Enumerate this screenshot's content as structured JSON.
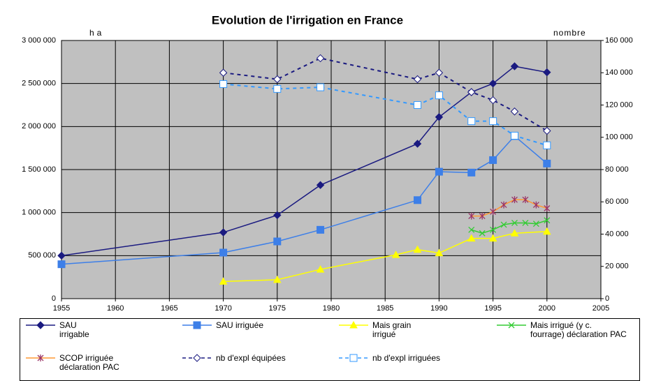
{
  "chart_data": {
    "type": "line",
    "title": "Evolution de l'irrigation en France",
    "ylabel": "ha",
    "y2label": "nombre",
    "xlim": [
      1955,
      2005
    ],
    "xticks": [
      1955,
      1960,
      1965,
      1970,
      1975,
      1980,
      1985,
      1990,
      1995,
      2000,
      2005
    ],
    "ylim": [
      0,
      3000000
    ],
    "yticks": [
      {
        "value": 0,
        "label": "0"
      },
      {
        "value": 500000,
        "label": "500 000"
      },
      {
        "value": 1000000,
        "label": "1 000 000"
      },
      {
        "value": 1500000,
        "label": "1 500 000"
      },
      {
        "value": 2000000,
        "label": "2 000 000"
      },
      {
        "value": 2500000,
        "label": "2 500 000"
      },
      {
        "value": 3000000,
        "label": "3 000 000"
      }
    ],
    "y2lim": [
      0,
      160000
    ],
    "y2ticks": [
      {
        "value": 0,
        "label": "0"
      },
      {
        "value": 20000,
        "label": "20 000"
      },
      {
        "value": 40000,
        "label": "40 000"
      },
      {
        "value": 60000,
        "label": "60 000"
      },
      {
        "value": 80000,
        "label": "80 000"
      },
      {
        "value": 100000,
        "label": "100 000"
      },
      {
        "value": 120000,
        "label": "120 000"
      },
      {
        "value": 140000,
        "label": "140 000"
      },
      {
        "value": 160000,
        "label": "160 000"
      }
    ],
    "grid": true,
    "series": [
      {
        "name": "SAU irrigable",
        "color": "#1a1a80",
        "marker": "diamond",
        "line_style": "solid",
        "x": [
          1955,
          1970,
          1975,
          1979,
          1988,
          1990,
          1993,
          1995,
          1997,
          2000
        ],
        "values": [
          500000,
          770000,
          970000,
          1320000,
          1800000,
          2110000,
          2400000,
          2500000,
          2700000,
          2630000
        ]
      },
      {
        "name": "SAU irriguée",
        "color": "#3d7fe8",
        "marker": "square",
        "line_style": "solid",
        "x": [
          1955,
          1970,
          1975,
          1979,
          1988,
          1990,
          1993,
          1995,
          1997,
          2000
        ],
        "values": [
          400000,
          535000,
          665000,
          800000,
          1145000,
          1475000,
          1465000,
          1610000,
          1890000,
          1570000
        ]
      },
      {
        "name": "Mais grain irrigué",
        "color": "#ffff00",
        "marker": "triangle",
        "line_style": "solid",
        "x": [
          1970,
          1975,
          1979,
          1986,
          1988,
          1990,
          1993,
          1995,
          1997,
          2000
        ],
        "values": [
          200000,
          220000,
          340000,
          510000,
          570000,
          530000,
          700000,
          700000,
          760000,
          780000
        ]
      },
      {
        "name": "Mais irrigué (y c. fourrage) déclaration PAC",
        "color": "#33cc33",
        "marker": "x",
        "line_style": "solid",
        "x": [
          1993,
          1994,
          1995,
          1996,
          1997,
          1998,
          1999,
          2000
        ],
        "values": [
          800000,
          760000,
          800000,
          860000,
          880000,
          880000,
          870000,
          910000
        ]
      },
      {
        "name": "SCOP irriguée déclaration PAC",
        "color": "#ff9933",
        "marker": "asterisk",
        "line_style": "solid",
        "x": [
          1993,
          1994,
          1995,
          1996,
          1997,
          1998,
          1999,
          2000
        ],
        "values": [
          960000,
          960000,
          1010000,
          1090000,
          1150000,
          1150000,
          1090000,
          1050000
        ]
      },
      {
        "name": "nb d'expl équipées",
        "color": "#1a1a80",
        "marker": "open-diamond",
        "line_style": "dashed",
        "axis": "y2",
        "x": [
          1970,
          1975,
          1979,
          1988,
          1990,
          1993,
          1995,
          1997,
          2000
        ],
        "values": [
          140000,
          136000,
          149000,
          136000,
          140000,
          128000,
          123000,
          116000,
          104000
        ]
      },
      {
        "name": "nb d'expl irriguées",
        "color": "#3399ff",
        "marker": "open-square",
        "line_style": "dashed",
        "axis": "y2",
        "x": [
          1970,
          1975,
          1979,
          1988,
          1990,
          1993,
          1995,
          1997,
          2000
        ],
        "values": [
          133000,
          130000,
          131000,
          120000,
          126000,
          110000,
          110000,
          101000,
          95000
        ]
      }
    ]
  }
}
